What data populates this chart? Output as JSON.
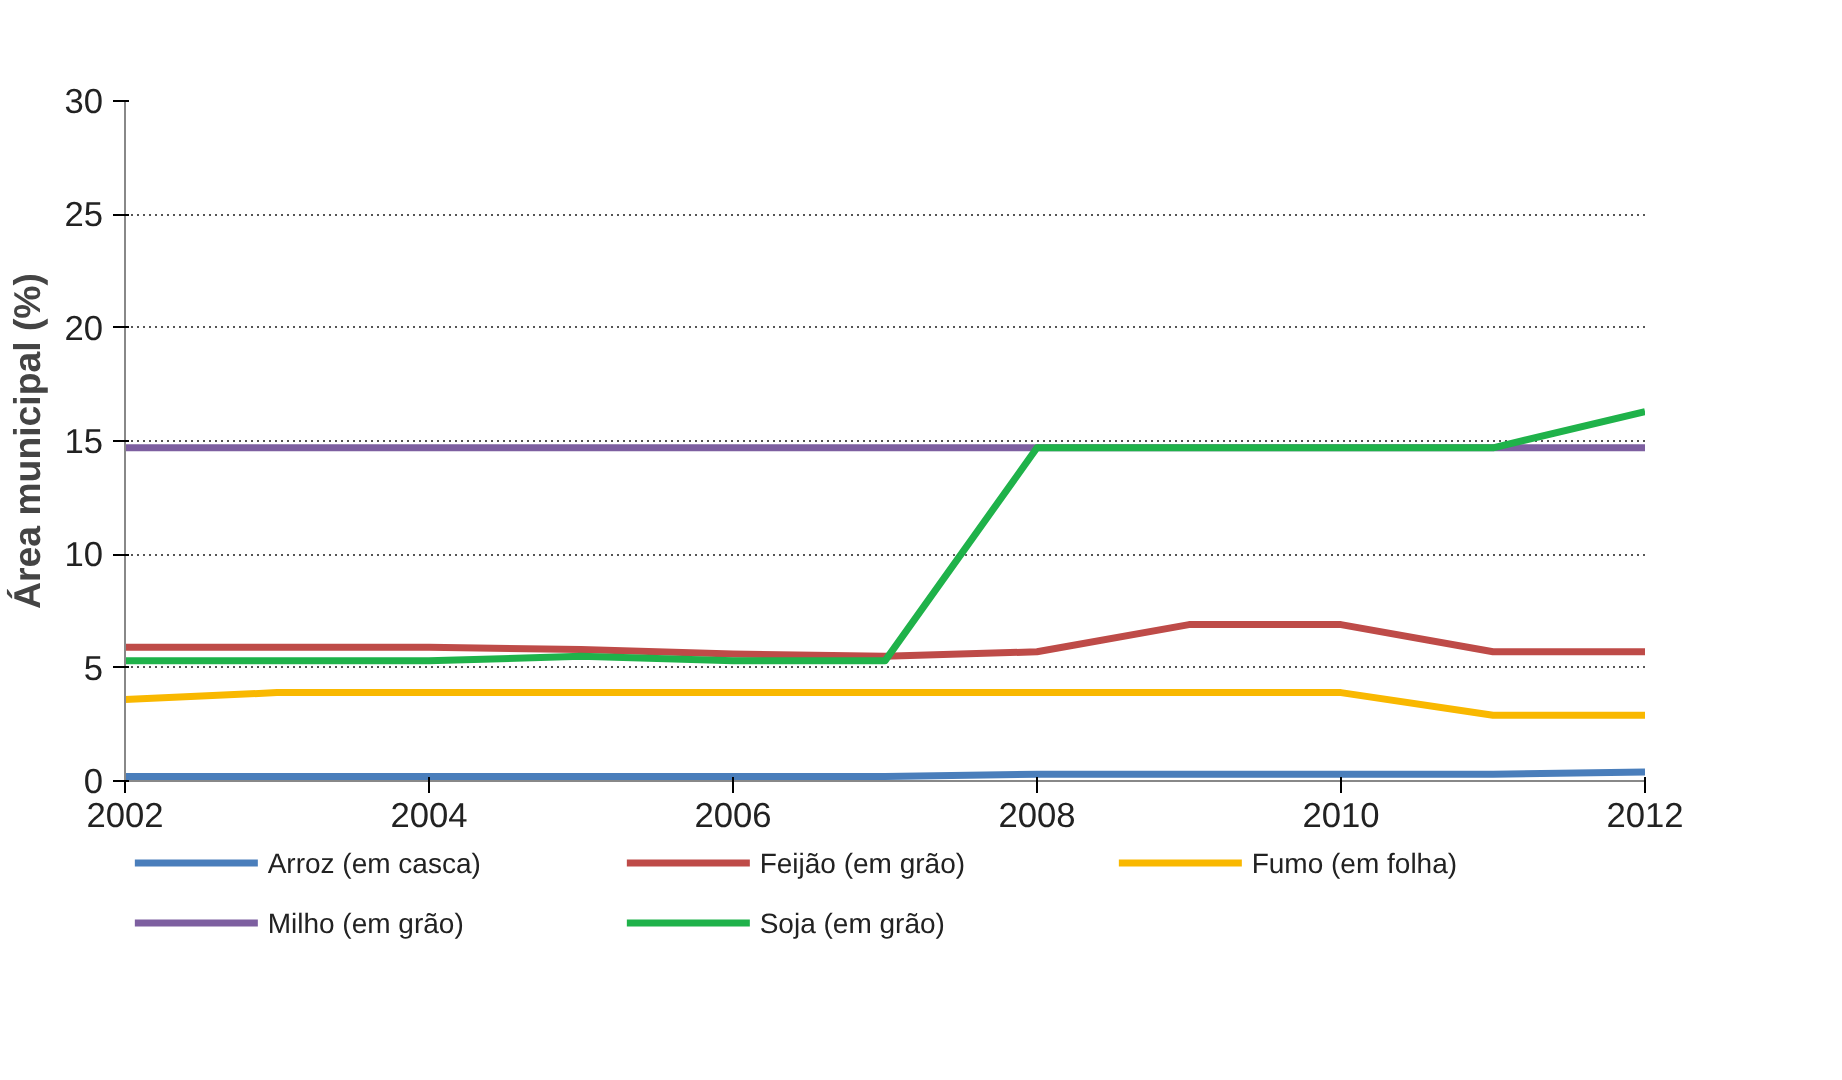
{
  "chart_data": {
    "type": "line",
    "ylabel": "Área municipal (%)",
    "x": [
      2002,
      2003,
      2004,
      2005,
      2006,
      2007,
      2008,
      2009,
      2010,
      2011,
      2012
    ],
    "xlim": [
      2002,
      2012
    ],
    "xticks": [
      2002,
      2004,
      2006,
      2008,
      2010,
      2012
    ],
    "ylim": [
      0,
      30
    ],
    "yticks": [
      0,
      5,
      10,
      15,
      20,
      25,
      30
    ],
    "grid": "y",
    "legend": "bottom",
    "line_style": "solid",
    "series": [
      {
        "name": "Arroz (em casca)",
        "color": "#4a7ebb",
        "values": [
          0.2,
          0.2,
          0.2,
          0.2,
          0.2,
          0.2,
          0.3,
          0.3,
          0.3,
          0.3,
          0.4
        ]
      },
      {
        "name": "Feijão (em grão)",
        "color": "#be4b48",
        "values": [
          5.9,
          5.9,
          5.9,
          5.8,
          5.6,
          5.5,
          5.7,
          6.9,
          6.9,
          5.7,
          5.7
        ]
      },
      {
        "name": "Fumo (em folha)",
        "color": "#f9b800",
        "values": [
          3.6,
          3.9,
          3.9,
          3.9,
          3.9,
          3.9,
          3.9,
          3.9,
          3.9,
          2.9,
          2.9
        ]
      },
      {
        "name": "Milho (em grão)",
        "color": "#7d5fa0",
        "values": [
          14.7,
          14.7,
          14.7,
          14.7,
          14.7,
          14.7,
          14.7,
          14.7,
          14.7,
          14.7,
          14.7
        ]
      },
      {
        "name": "Soja (em grão)",
        "color": "#1fb24a",
        "values": [
          5.3,
          5.3,
          5.3,
          5.5,
          5.3,
          5.3,
          14.7,
          14.7,
          14.7,
          14.7,
          16.3
        ]
      }
    ]
  }
}
